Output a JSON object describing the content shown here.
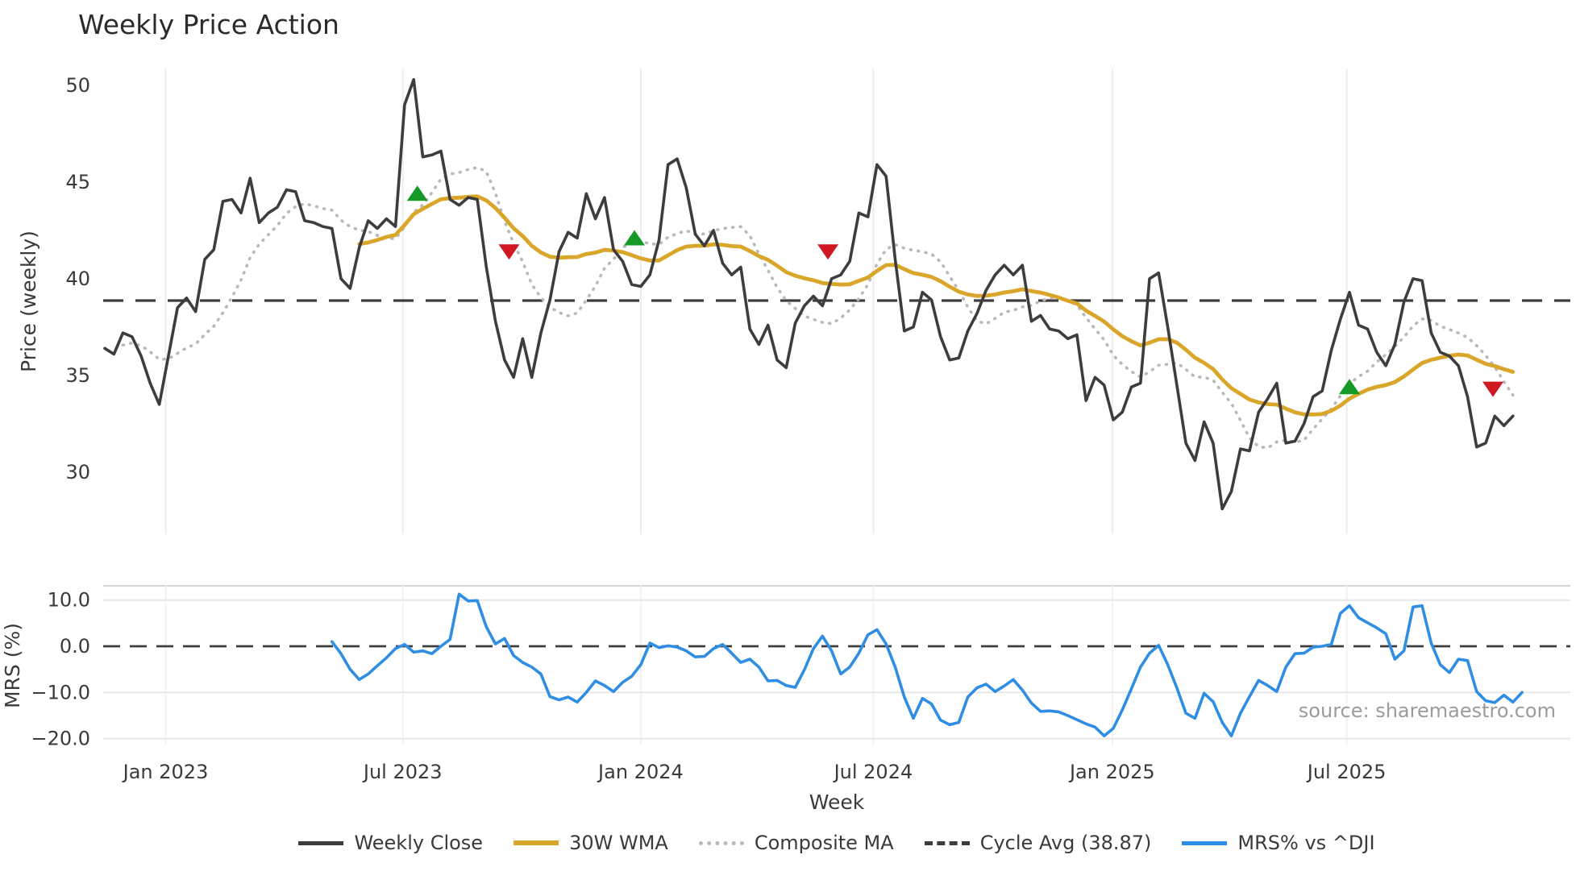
{
  "title": "Weekly Price Action",
  "source": "source: sharemaestro.com",
  "colors": {
    "close": "#3d3d3d",
    "wma": "#d9a62a",
    "composite": "#b9b9b9",
    "cycle": "#3d3d3d",
    "mrs": "#2f8ee4",
    "buy": "#159a28",
    "sell": "#cf1822",
    "grid_vertical": "#ededed",
    "grid_horizontal": "#e7e7e7",
    "panel_border": "#d4d4d4",
    "tick_text": "#3a3a3a",
    "source_text": "#9b9b9b"
  },
  "x_axis": {
    "label": "Week",
    "ticks": [
      {
        "label": "Jan 2023",
        "week": 6.7
      },
      {
        "label": "Jul 2023",
        "week": 32.8
      },
      {
        "label": "Jan 2024",
        "week": 59.0
      },
      {
        "label": "Jul 2024",
        "week": 84.6
      },
      {
        "label": "Jan 2025",
        "week": 110.9
      },
      {
        "label": "Jul 2025",
        "week": 136.7
      }
    ]
  },
  "legend": {
    "items": [
      {
        "label": "Weekly Close",
        "swatch": "close"
      },
      {
        "label": "30W WMA",
        "swatch": "wma"
      },
      {
        "label": "Composite MA",
        "swatch": "composite"
      },
      {
        "label": "Cycle Avg (38.87)",
        "swatch": "cycle"
      },
      {
        "label": "MRS% vs ^DJI",
        "swatch": "mrs"
      }
    ]
  },
  "chart_data": {
    "type": "line",
    "x_unit": "weeks",
    "panels": [
      {
        "name": "price",
        "ylabel": "Price (weekly)",
        "ylim": [
          26.9,
          51.3
        ],
        "yticks": [
          {
            "value": 30,
            "label": "30"
          },
          {
            "value": 35,
            "label": "35"
          },
          {
            "value": 40,
            "label": "40"
          },
          {
            "value": 45,
            "label": "45"
          },
          {
            "value": 50,
            "label": "50"
          }
        ],
        "cycle_avg": 38.87,
        "series": [
          {
            "name": "Weekly Close",
            "style": "solid",
            "color_key": "close",
            "start_week": 0,
            "values": [
              36.4,
              36.1,
              37.2,
              37.0,
              36.0,
              34.6,
              33.5,
              36.0,
              38.5,
              39.0,
              38.3,
              41.0,
              41.5,
              44.0,
              44.1,
              43.4,
              45.2,
              42.9,
              43.4,
              43.7,
              44.6,
              44.5,
              43.0,
              42.9,
              42.7,
              42.6,
              40.0,
              39.5,
              41.6,
              43.0,
              42.6,
              43.1,
              42.7,
              49.0,
              50.3,
              46.3,
              46.4,
              46.6,
              44.1,
              43.8,
              44.2,
              44.1,
              40.6,
              37.8,
              35.8,
              34.9,
              36.9,
              34.9,
              37.2,
              38.9,
              41.4,
              42.4,
              42.1,
              44.4,
              43.1,
              44.2,
              41.5,
              40.9,
              39.7,
              39.6,
              40.2,
              42.0,
              45.9,
              46.2,
              44.7,
              42.3,
              41.7,
              42.5,
              40.8,
              40.2,
              40.6,
              37.4,
              36.6,
              37.6,
              35.8,
              35.4,
              37.7,
              38.6,
              39.1,
              38.6,
              40.0,
              40.2,
              40.9,
              43.4,
              43.2,
              45.9,
              45.3,
              41.0,
              37.3,
              37.5,
              39.3,
              38.9,
              37.0,
              35.8,
              35.9,
              37.3,
              38.2,
              39.4,
              40.2,
              40.7,
              40.2,
              40.7,
              37.8,
              38.1,
              37.4,
              37.3,
              36.9,
              37.1,
              33.7,
              34.9,
              34.5,
              32.7,
              33.1,
              34.4,
              34.6,
              40.0,
              40.3,
              37.5,
              34.5,
              31.5,
              30.6,
              32.6,
              31.5,
              28.1,
              29.0,
              31.2,
              31.1,
              33.1,
              33.8,
              34.6,
              31.5,
              31.6,
              32.5,
              33.9,
              34.2,
              36.3,
              37.9,
              39.3,
              37.6,
              37.4,
              36.2,
              35.5,
              36.6,
              38.8,
              40.0,
              39.9,
              37.2,
              36.2,
              36.0,
              35.5,
              33.9,
              31.3,
              31.5,
              32.9,
              32.4,
              32.9
            ]
          },
          {
            "name": "30W WMA",
            "style": "solid",
            "color_key": "wma",
            "derived": "wma",
            "window": 30,
            "start_index": 28
          },
          {
            "name": "Composite MA",
            "style": "dotted",
            "color_key": "composite",
            "derived": "sma",
            "window": 10,
            "start_index": 2
          }
        ],
        "markers": {
          "buy": [
            {
              "week": 34.4,
              "price": 44.4
            },
            {
              "week": 58.3,
              "price": 42.1
            },
            {
              "week": 137.0,
              "price": 34.4
            }
          ],
          "sell": [
            {
              "week": 44.5,
              "price": 41.4
            },
            {
              "week": 79.6,
              "price": 41.4
            },
            {
              "week": 152.8,
              "price": 34.3
            }
          ]
        }
      },
      {
        "name": "mrs",
        "ylabel": "MRS (%)",
        "ylim": [
          -22.5,
          13.5
        ],
        "yticks": [
          {
            "value": 10,
            "label": "10.0"
          },
          {
            "value": 0,
            "label": "0.0"
          },
          {
            "value": -10,
            "label": "−10.0"
          },
          {
            "value": -20,
            "label": "−20.0"
          }
        ],
        "zero_line": 0,
        "series": [
          {
            "name": "MRS% vs ^DJI",
            "style": "solid",
            "color_key": "mrs",
            "start_week": 25,
            "values": [
              1.0,
              -1.6,
              -5.0,
              -7.2,
              -6.0,
              -4.2,
              -2.5,
              -0.5,
              0.4,
              -1.3,
              -1.0,
              -1.6,
              0.0,
              1.5,
              11.3,
              9.8,
              9.9,
              4.2,
              0.5,
              1.7,
              -2.0,
              -3.5,
              -4.5,
              -6.0,
              -10.9,
              -11.6,
              -11.0,
              -12.1,
              -10.0,
              -7.5,
              -8.5,
              -9.8,
              -7.8,
              -6.5,
              -4.0,
              0.7,
              -0.3,
              0.1,
              -0.2,
              -1.0,
              -2.3,
              -2.2,
              -0.5,
              0.4,
              -1.5,
              -3.5,
              -2.8,
              -4.5,
              -7.5,
              -7.4,
              -8.5,
              -8.9,
              -5.1,
              -0.5,
              2.2,
              -1.0,
              -6.0,
              -4.5,
              -1.5,
              2.5,
              3.6,
              0.5,
              -4.5,
              -11.0,
              -15.6,
              -11.3,
              -12.5,
              -16.0,
              -17.0,
              -16.5,
              -11.0,
              -9.0,
              -8.2,
              -9.8,
              -8.6,
              -7.2,
              -9.5,
              -12.3,
              -14.1,
              -14.0,
              -14.2,
              -15.0,
              -15.9,
              -16.8,
              -17.5,
              -19.4,
              -17.8,
              -13.8,
              -9.2,
              -4.5,
              -1.5,
              0.2,
              -4.0,
              -9.0,
              -14.5,
              -15.6,
              -10.2,
              -12.0,
              -16.5,
              -19.4,
              -14.5,
              -10.9,
              -7.4,
              -8.5,
              -9.8,
              -4.5,
              -1.6,
              -1.5,
              -0.2,
              0.0,
              0.4,
              7.1,
              8.8,
              6.2,
              5.1,
              4.0,
              2.7,
              -2.8,
              -1.0,
              8.5,
              8.8,
              0.7,
              -4.0,
              -5.7,
              -2.8,
              -3.1,
              -9.8,
              -11.8,
              -12.2,
              -10.6,
              -12.1,
              -10.0
            ]
          }
        ]
      }
    ]
  }
}
